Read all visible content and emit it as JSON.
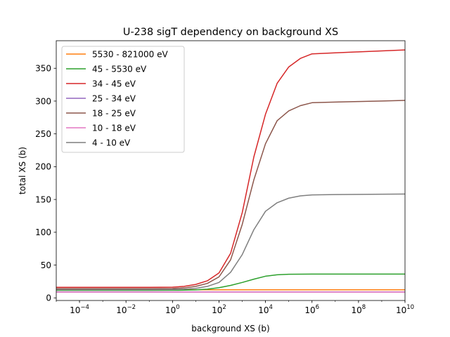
{
  "chart_data": {
    "type": "line",
    "title": "U-238 sigT dependency on background XS",
    "xlabel": "background XS (b)",
    "ylabel": "total XS (b)",
    "xscale": "log",
    "xlim": [
      1e-05,
      10000000000
    ],
    "ylim": [
      -4,
      392
    ],
    "x_ticks": [
      0.0001,
      0.01,
      1,
      100,
      10000,
      1000000,
      100000000,
      10000000000
    ],
    "x_tick_labels": [
      {
        "base": "10",
        "exp": "−4"
      },
      {
        "base": "10",
        "exp": "−2"
      },
      {
        "base": "10",
        "exp": "0"
      },
      {
        "base": "10",
        "exp": "2"
      },
      {
        "base": "10",
        "exp": "4"
      },
      {
        "base": "10",
        "exp": "6"
      },
      {
        "base": "10",
        "exp": "8"
      },
      {
        "base": "10",
        "exp": "10"
      }
    ],
    "y_ticks": [
      0,
      50,
      100,
      150,
      200,
      250,
      300,
      350
    ],
    "y_tick_labels": [
      "0",
      "50",
      "100",
      "150",
      "200",
      "250",
      "300",
      "350"
    ],
    "grid": false,
    "legend_position": "top-left",
    "x": [
      1e-05,
      0.0001,
      0.001,
      0.01,
      0.1,
      1,
      3.16,
      10,
      31.6,
      100,
      316,
      1000,
      3160,
      10000,
      31600,
      100000,
      316000,
      1000000,
      10000000,
      100000000,
      1000000000,
      10000000000
    ],
    "series": [
      {
        "name": "5530 - 821000 eV",
        "color": "#ff7f0e",
        "values": [
          12.3,
          12.3,
          12.3,
          12.3,
          12.3,
          12.3,
          12.3,
          12.3,
          12.3,
          12.3,
          12.3,
          12.3,
          12.3,
          12.3,
          12.3,
          12.3,
          12.3,
          12.3,
          12.3,
          12.3,
          12.3,
          12.3
        ]
      },
      {
        "name": "45 - 5530 eV",
        "color": "#2ca02c",
        "values": [
          11.5,
          11.5,
          11.5,
          11.5,
          11.5,
          11.6,
          11.8,
          12.2,
          13.2,
          15.5,
          19.0,
          23.5,
          28.5,
          33.0,
          35.2,
          36.0,
          36.2,
          36.3,
          36.3,
          36.3,
          36.3,
          36.3
        ]
      },
      {
        "name": "34 - 45 eV",
        "color": "#d62728",
        "values": [
          16.0,
          16.0,
          16.0,
          16.0,
          16.1,
          16.4,
          17.5,
          20.5,
          26.0,
          38.0,
          68.0,
          130.0,
          215.0,
          280.0,
          327.0,
          352.0,
          365.0,
          372.0,
          373.5,
          375.0,
          376.5,
          378.0
        ]
      },
      {
        "name": "25 - 34 eV",
        "color": "#9467bd",
        "values": [
          9.0,
          9.0,
          9.0,
          9.0,
          9.0,
          9.0,
          9.0,
          9.0,
          9.0,
          9.0,
          9.0,
          9.0,
          9.0,
          9.0,
          9.0,
          9.0,
          9.0,
          9.0,
          9.0,
          9.0,
          9.0,
          9.0
        ]
      },
      {
        "name": "18 - 25 eV",
        "color": "#8c564b",
        "values": [
          14.0,
          14.0,
          14.0,
          14.0,
          14.0,
          14.3,
          15.2,
          17.5,
          22.0,
          32.0,
          58.0,
          112.0,
          180.0,
          235.0,
          270.0,
          285.0,
          293.0,
          297.5,
          298.5,
          299.3,
          300.1,
          301.0
        ]
      },
      {
        "name": "10 - 18 eV",
        "color": "#e377c2",
        "values": [
          8.8,
          8.8,
          8.8,
          8.8,
          8.8,
          8.8,
          8.8,
          8.8,
          8.8,
          8.8,
          8.8,
          8.8,
          8.8,
          8.8,
          8.8,
          8.8,
          8.8,
          8.8,
          8.8,
          8.8,
          8.8,
          8.8
        ]
      },
      {
        "name": "4 - 10 eV",
        "color": "#7f7f7f",
        "values": [
          12.5,
          12.5,
          12.5,
          12.5,
          12.5,
          12.7,
          13.2,
          14.5,
          17.5,
          23.5,
          39.0,
          66.0,
          104.0,
          132.0,
          145.0,
          152.0,
          155.5,
          157.0,
          157.5,
          157.8,
          158.0,
          158.3
        ]
      }
    ]
  }
}
